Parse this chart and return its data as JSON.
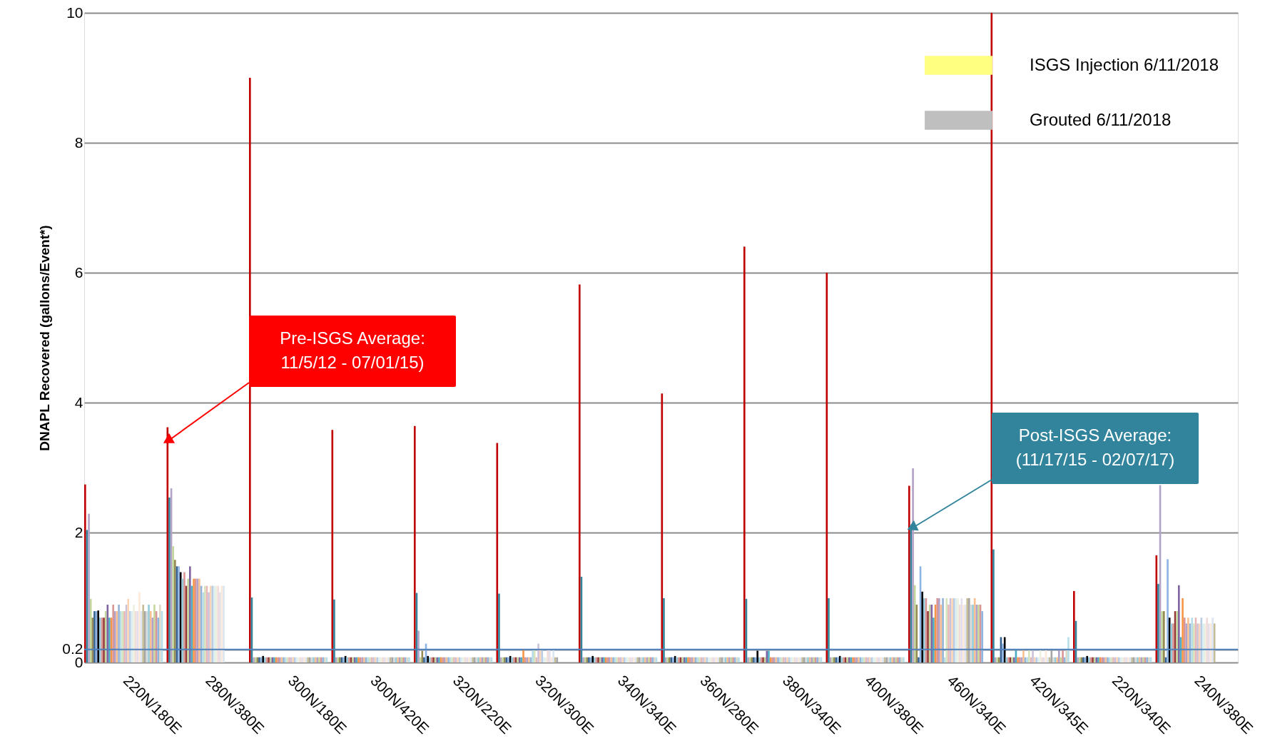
{
  "chart_data": {
    "type": "bar",
    "ylabel": "DNAPL Recovered (gallons/Event*)",
    "categories": [
      "220N/180E",
      "280N/380E",
      "300N/180E",
      "300N/420E",
      "320N/220E",
      "320N/300E",
      "340N/340E",
      "360N/280E",
      "380N/340E",
      "400N/380E",
      "460N/340E",
      "420N/345E",
      "220N/340E",
      "240N/380E"
    ],
    "ylim": [
      0,
      10
    ],
    "yticks": [
      0,
      0.2,
      2,
      4,
      6,
      8,
      10
    ],
    "grid": "y",
    "legend": "top right",
    "ref_lines": [
      {
        "axis": "y",
        "value": 0.2,
        "color": "#4f81bd"
      }
    ],
    "annotations": [
      "Pre-ISGS Average:\n11/5/12 - 07/01/15)",
      "Post-ISGS Average:\n(11/17/15 - 02/07/17)"
    ],
    "series": [
      {
        "color": "#c00000",
        "values": [
          2.74,
          3.62,
          9.0,
          3.58,
          3.64,
          3.38,
          5.82,
          4.14,
          6.4,
          6.0,
          2.72,
          10,
          1.1,
          1.65
        ]
      },
      {
        "color": "#31849b",
        "values": [
          2.04,
          2.54,
          1.0,
          0.97,
          1.07,
          1.06,
          1.32,
          0.99,
          0.98,
          0.99,
          2.05,
          1.74,
          0.64,
          1.21
        ]
      },
      {
        "color": "#b3a2c7",
        "values": [
          2.29,
          2.68,
          0.08,
          0.08,
          0.49,
          0.08,
          0.08,
          0.08,
          0.08,
          0.08,
          2.99,
          0.08,
          0.08,
          2.73
        ]
      },
      {
        "color": "#c3d69b",
        "values": [
          0.98,
          1.79,
          0.08,
          0.08,
          0.08,
          0.08,
          0.08,
          0.08,
          0.08,
          0.08,
          1.19,
          0.08,
          0.08,
          0.79
        ]
      },
      {
        "color": "#948a54",
        "values": [
          0.69,
          1.58,
          0.08,
          0.08,
          0.18,
          0.08,
          0.08,
          0.08,
          0.08,
          0.08,
          0.89,
          0.08,
          0.08,
          0.79
        ]
      },
      {
        "color": "#376092",
        "values": [
          0.79,
          1.48,
          0.08,
          0.08,
          0.08,
          0.08,
          0.08,
          0.08,
          0.08,
          0.08,
          0.08,
          0.39,
          0.08,
          0.08
        ]
      },
      {
        "color": "#8eb4e3",
        "values": [
          0.79,
          1.48,
          0.08,
          0.08,
          0.29,
          0.08,
          0.08,
          0.08,
          0.08,
          0.08,
          1.48,
          0.29,
          0.08,
          1.59
        ]
      },
      {
        "color": "#000000",
        "values": [
          0.8,
          1.39,
          0.1,
          0.1,
          0.1,
          0.1,
          0.1,
          0.1,
          0.18,
          0.1,
          1.09,
          0.39,
          0.1,
          0.69
        ]
      },
      {
        "color": "#93cddd",
        "values": [
          0.69,
          1.29,
          0.08,
          0.08,
          0.08,
          0.08,
          0.08,
          0.08,
          0.08,
          0.08,
          0.99,
          0.08,
          0.08,
          0.6
        ]
      },
      {
        "color": "#d99694",
        "values": [
          0.69,
          1.39,
          0.08,
          0.08,
          0.08,
          0.08,
          0.08,
          0.08,
          0.08,
          0.08,
          0.99,
          0.08,
          0.08,
          0.6
        ]
      },
      {
        "color": "#953735",
        "values": [
          0.69,
          1.18,
          0.08,
          0.08,
          0.08,
          0.08,
          0.08,
          0.08,
          0.08,
          0.08,
          0.79,
          0.08,
          0.08,
          0.79
        ]
      },
      {
        "color": "#c3d69b",
        "values": [
          0.79,
          1.29,
          0.08,
          0.08,
          0.08,
          0.08,
          0.08,
          0.08,
          0.08,
          0.08,
          0.89,
          0.08,
          0.08,
          0.79
        ]
      },
      {
        "color": "#8064a2",
        "values": [
          0.89,
          1.48,
          0.08,
          0.08,
          0.08,
          0.08,
          0.08,
          0.08,
          0.18,
          0.08,
          0.89,
          0.08,
          0.08,
          1.19
        ]
      },
      {
        "color": "#4bacc6",
        "values": [
          0.69,
          1.18,
          0.08,
          0.08,
          0.08,
          0.08,
          0.08,
          0.08,
          0.18,
          0.08,
          0.69,
          0.19,
          0.08,
          0.39
        ]
      },
      {
        "color": "#f79646",
        "values": [
          0.69,
          1.29,
          0.08,
          0.08,
          0.08,
          0.19,
          0.08,
          0.08,
          0.08,
          0.08,
          0.89,
          0.08,
          0.08,
          0.99
        ]
      },
      {
        "color": "#d99694",
        "values": [
          0.89,
          1.29,
          0.08,
          0.08,
          0.08,
          0.08,
          0.08,
          0.08,
          0.08,
          0.08,
          0.99,
          0.08,
          0.08,
          0.69
        ]
      },
      {
        "color": "#b3a2c7",
        "values": [
          0.79,
          1.29,
          0.08,
          0.08,
          0.08,
          0.08,
          0.08,
          0.08,
          0.08,
          0.08,
          0.99,
          0.08,
          0.08,
          0.6
        ]
      },
      {
        "color": "#fac090",
        "values": [
          0.79,
          1.29,
          0.08,
          0.08,
          0.08,
          0.08,
          0.08,
          0.08,
          0.08,
          0.08,
          0.89,
          0.19,
          0.08,
          0.69
        ]
      },
      {
        "color": "#95b3d7",
        "values": [
          0.89,
          1.18,
          0.08,
          0.08,
          0.08,
          0.08,
          0.08,
          0.08,
          0.08,
          0.08,
          0.99,
          0.08,
          0.08,
          0.6
        ]
      },
      {
        "color": "#b7dee8",
        "values": [
          0.79,
          1.08,
          0.08,
          0.08,
          0.08,
          0.19,
          0.08,
          0.08,
          0.08,
          0.08,
          0.08,
          0.08,
          0.08,
          0.69
        ]
      },
      {
        "color": "#d7e4bd",
        "values": [
          0.79,
          1.18,
          0.08,
          0.08,
          0.08,
          0.19,
          0.08,
          0.08,
          0.08,
          0.08,
          0.99,
          0.19,
          0.08,
          0.6
        ]
      },
      {
        "color": "#e6b9b8",
        "values": [
          0.79,
          1.18,
          0.08,
          0.08,
          0.08,
          0.08,
          0.08,
          0.08,
          0.08,
          0.08,
          0.89,
          0.08,
          0.08,
          0.69
        ]
      },
      {
        "color": "#ccc1da",
        "values": [
          0.89,
          1.08,
          0.08,
          0.08,
          0.08,
          0.29,
          0.08,
          0.08,
          0.08,
          0.08,
          0.99,
          0.19,
          0.08,
          0.6
        ]
      },
      {
        "color": "#fcd5b5",
        "values": [
          0.98,
          1.18,
          0.08,
          0.08,
          0.08,
          0.19,
          0.08,
          0.08,
          0.08,
          0.08,
          0.99,
          0.08,
          0.08,
          0.6
        ]
      },
      {
        "color": "#b9cde5",
        "values": [
          0.79,
          1.18,
          0.08,
          0.08,
          0.08,
          0.19,
          0.08,
          0.08,
          0.08,
          0.08,
          0.99,
          0.08,
          0.08,
          0.69
        ]
      },
      {
        "color": "#dbeef4",
        "values": [
          0.79,
          1.18,
          0.08,
          0.08,
          0.08,
          0.08,
          0.08,
          0.08,
          0.08,
          0.08,
          0.99,
          0.08,
          0.08,
          0.6
        ]
      },
      {
        "color": "#ebf1de",
        "values": [
          0.89,
          1.18,
          0.08,
          0.08,
          0.08,
          0.08,
          0.08,
          0.08,
          0.08,
          0.08,
          0.99,
          0.19,
          0.08,
          0.6
        ]
      },
      {
        "color": "#f2dcdb",
        "values": [
          0.79,
          1.18,
          0.08,
          0.08,
          0.08,
          0.19,
          0.08,
          0.08,
          0.08,
          0.08,
          0.89,
          0.08,
          0.08,
          0.69
        ]
      },
      {
        "color": "#e4dfec",
        "values": [
          0.79,
          1.08,
          0.08,
          0.08,
          0.08,
          0.19,
          0.08,
          0.08,
          0.08,
          0.08,
          0.99,
          0.08,
          0.08,
          0.6
        ]
      },
      {
        "color": "#fde9d9",
        "values": [
          1.08,
          1.18,
          0.08,
          0.08,
          0.08,
          0.08,
          0.08,
          0.08,
          0.08,
          0.08,
          0.89,
          0.19,
          0.08,
          0.6
        ]
      },
      {
        "color": "#dce6f2",
        "values": [
          0.79,
          1.18,
          0.08,
          0.08,
          0.08,
          0.19,
          0.08,
          0.08,
          0.08,
          0.08,
          0.89,
          0.08,
          0.08,
          0.69
        ]
      },
      {
        "color": "#c4bd97",
        "values": [
          0.89,
          null,
          0.08,
          0.08,
          0.08,
          0.08,
          0.08,
          0.08,
          0.08,
          0.08,
          0.99,
          0.08,
          0.08,
          0.6
        ]
      },
      {
        "color": "#a6a6a6",
        "values": [
          0.79,
          null,
          0.08,
          0.08,
          0.08,
          0.08,
          0.08,
          0.08,
          0.08,
          0.08,
          0.99,
          0.19,
          0.08,
          null
        ]
      },
      {
        "color": "#d9d9d9",
        "values": [
          0.79,
          null,
          0.08,
          0.08,
          0.08,
          null,
          0.08,
          0.08,
          0.08,
          0.08,
          0.89,
          0.08,
          0.08,
          null
        ]
      },
      {
        "color": "#92cddc",
        "values": [
          0.89,
          null,
          0.08,
          0.08,
          0.08,
          null,
          0.08,
          0.08,
          0.08,
          0.08,
          0.89,
          0.08,
          0.08,
          null
        ]
      },
      {
        "color": "#fabf8f",
        "values": [
          0.79,
          null,
          0.08,
          0.08,
          0.08,
          null,
          0.08,
          0.08,
          0.08,
          0.08,
          0.99,
          0.08,
          0.08,
          null
        ]
      },
      {
        "color": "#b1a0c7",
        "values": [
          0.69,
          null,
          0.08,
          0.08,
          0.08,
          null,
          0.08,
          0.08,
          0.08,
          0.08,
          0.89,
          0.19,
          0.08,
          null
        ]
      },
      {
        "color": "#c4d79b",
        "values": [
          0.89,
          null,
          0.08,
          0.08,
          0.08,
          null,
          0.08,
          0.08,
          0.08,
          0.08,
          0.89,
          0.08,
          0.08,
          null
        ]
      },
      {
        "color": "#da9694",
        "values": [
          0.79,
          null,
          0.08,
          0.08,
          0.08,
          null,
          0.08,
          0.08,
          0.08,
          0.08,
          0.89,
          0.19,
          0.08,
          null
        ]
      },
      {
        "color": "#8db4e2",
        "values": [
          0.69,
          null,
          0.08,
          0.08,
          0.08,
          null,
          0.08,
          0.08,
          0.08,
          0.08,
          0.79,
          0.08,
          0.08,
          null
        ]
      },
      {
        "color": "#ddd9c4",
        "values": [
          0.89,
          null,
          0.08,
          0.08,
          0.08,
          null,
          0.08,
          0.08,
          0.08,
          0.08,
          null,
          0.19,
          0.08,
          null
        ]
      },
      {
        "color": "#b7dee8",
        "values": [
          0.79,
          null,
          0.08,
          0.08,
          0.08,
          null,
          0.08,
          0.08,
          0.08,
          0.08,
          null,
          0.39,
          0.08,
          null
        ]
      },
      {
        "name": "ISGS Injection 6/11/2018",
        "color": "#ffff80",
        "values": [
          null,
          null,
          null,
          null,
          null,
          null,
          null,
          null,
          null,
          null,
          null,
          null,
          null,
          null
        ]
      },
      {
        "name": "Grouted 6/11/2018",
        "color": "#bfbfbf",
        "values": [
          null,
          null,
          null,
          null,
          null,
          null,
          null,
          null,
          null,
          null,
          null,
          null,
          null,
          null
        ]
      }
    ]
  }
}
